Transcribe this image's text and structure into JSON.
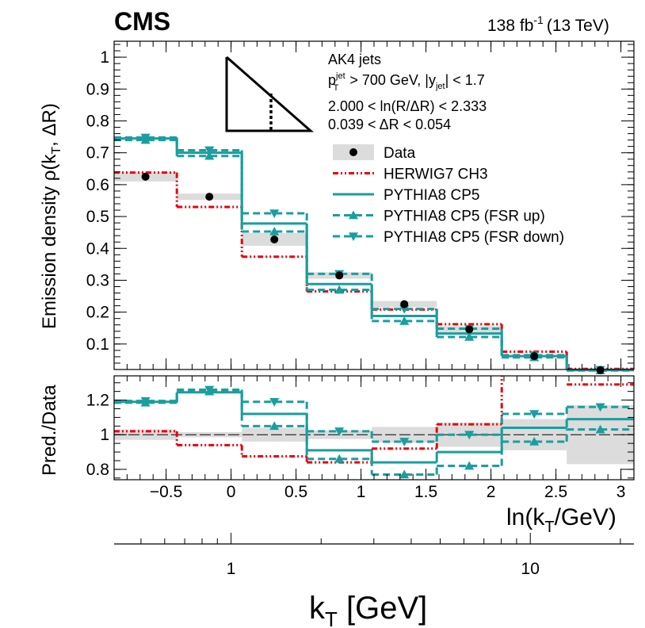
{
  "header": {
    "experiment": "CMS",
    "lumi_value": "138 fb",
    "lumi_exp": "-1",
    "energy": "(13 TeV)"
  },
  "annotation": {
    "jets": "AK4 jets",
    "kin_p": "p",
    "kin_p_sup": "jet",
    "kin_p_sub": "T",
    "kin_mid": " > 700 GeV, |y",
    "kin_y_sub": "jet",
    "kin_end": "| < 1.7",
    "bin_ln": "2.000 < ln(R/ΔR) < 2.333",
    "bin_dr": "0.039 < ΔR < 0.054"
  },
  "labels": {
    "upper_ylabel": "Emission density ρ(k",
    "upper_ylabel_sub": "T",
    "upper_ylabel_end": ", ΔR)",
    "lower_ylabel": "Pred./Data",
    "xlabel_ln": "ln(k",
    "xlabel_ln_sub": "T",
    "xlabel_ln_end": "/GeV)",
    "xlabel_kt": "k",
    "xlabel_kt_sub": "T",
    "xlabel_kt_end": " [GeV]"
  },
  "colors": {
    "data": "#000000",
    "data_band": "#dcdcdc",
    "herwig": "#e8000b",
    "pythia": "#1a9e9e"
  },
  "chart_data": {
    "type": "step",
    "x_variable": "ln(kT/GeV)",
    "xlim": [
      -0.9,
      3.1
    ],
    "bin_edges": [
      -0.9,
      -0.417,
      0.083,
      0.583,
      1.083,
      1.583,
      2.083,
      2.583,
      3.1
    ],
    "upper": {
      "ylim": [
        0.02,
        1.05
      ],
      "yticks": [
        0.1,
        0.2,
        0.3,
        0.4,
        0.5,
        0.6,
        0.7,
        0.8,
        0.9,
        1
      ],
      "ytick_labels": [
        "0.1",
        "0.2",
        "0.3",
        "0.4",
        "0.5",
        "0.6",
        "0.7",
        "0.8",
        "0.9",
        "1"
      ],
      "series": [
        {
          "name": "Data",
          "values": [
            0.625,
            0.562,
            0.428,
            0.315,
            0.225,
            0.146,
            0.062,
            0.018
          ],
          "band": [
            0.015,
            0.01,
            0.02,
            0.01,
            0.01,
            0.01,
            0.004,
            0.006
          ]
        },
        {
          "name": "HERWIG7 CH3",
          "values": [
            0.638,
            0.53,
            0.374,
            0.265,
            0.208,
            0.162,
            0.076,
            0.022
          ]
        },
        {
          "name": "PYTHIA8 CP5",
          "values": [
            0.745,
            0.7,
            0.478,
            0.288,
            0.188,
            0.133,
            0.062,
            0.018
          ]
        },
        {
          "name": "PYTHIA8 CP5 (FSR up)",
          "values": [
            0.74,
            0.69,
            0.453,
            0.27,
            0.172,
            0.122,
            0.058,
            0.017
          ]
        },
        {
          "name": "PYTHIA8 CP5 (FSR down)",
          "values": [
            0.748,
            0.708,
            0.51,
            0.32,
            0.21,
            0.148,
            0.065,
            0.019
          ]
        }
      ]
    },
    "ratio": {
      "ylim": [
        0.74,
        1.34
      ],
      "yticks": [
        0.8,
        1,
        1.2
      ],
      "ytick_labels": [
        "0.8",
        "1",
        "1.2"
      ],
      "data_band": [
        0.03,
        0.015,
        0.04,
        0.025,
        0.045,
        0.07,
        0.09,
        0.17
      ],
      "series": [
        {
          "name": "HERWIG7 CH3",
          "values": [
            1.02,
            0.94,
            0.875,
            0.84,
            0.92,
            1.06,
            1.35,
            1.29
          ]
        },
        {
          "name": "PYTHIA8 CP5",
          "values": [
            1.19,
            1.245,
            1.12,
            0.91,
            0.84,
            0.9,
            1.04,
            1.09
          ]
        },
        {
          "name": "PYTHIA8 CP5 (FSR up)",
          "values": [
            1.185,
            1.25,
            1.05,
            0.86,
            0.77,
            0.82,
            0.96,
            1.03
          ]
        },
        {
          "name": "PYTHIA8 CP5 (FSR down)",
          "values": [
            1.195,
            1.26,
            1.19,
            1.02,
            0.96,
            1.0,
            1.12,
            1.16
          ]
        }
      ]
    },
    "xticks": [
      -0.5,
      0,
      0.5,
      1,
      1.5,
      2,
      2.5,
      3
    ],
    "xtick_labels": [
      "−0.5",
      "0",
      "0.5",
      "1",
      "1.5",
      "2",
      "2.5",
      "3"
    ],
    "kt_axis": {
      "major_ticks": [
        1,
        10
      ],
      "major_labels": [
        "1",
        "10"
      ]
    },
    "legend": [
      {
        "label": "Data",
        "style": "data"
      },
      {
        "label": "HERWIG7 CH3",
        "style": "herwig"
      },
      {
        "label": "PYTHIA8 CP5",
        "style": "pythia"
      },
      {
        "label": "PYTHIA8 CP5 (FSR up)",
        "style": "pythia-up"
      },
      {
        "label": "PYTHIA8 CP5 (FSR down)",
        "style": "pythia-down"
      }
    ]
  }
}
